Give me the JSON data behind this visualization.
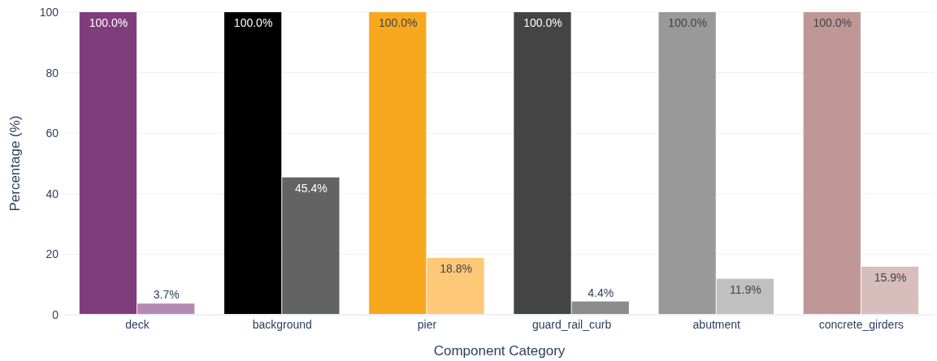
{
  "chart_data": {
    "type": "bar",
    "xlabel": "Component Category",
    "ylabel": "Percentage (%)",
    "categories": [
      "deck",
      "background",
      "pier",
      "guard_rail_curb",
      "abutment",
      "concrete_girders"
    ],
    "series": [
      {
        "colors": [
          "#803d7e",
          "#000000",
          "#f8a81f",
          "#444444",
          "#999999",
          "#bf9797"
        ],
        "values": [
          100,
          100,
          100,
          100,
          100,
          100
        ],
        "value_labels": [
          "100.0%",
          "100.0%",
          "100.0%",
          "100.0%",
          "100.0%",
          "100.0%"
        ]
      },
      {
        "colors": [
          "#b48ab4",
          "#636363",
          "#fdc878",
          "#8c8c8c",
          "#c0c0c0",
          "#d8bdbd"
        ],
        "values": [
          3.7,
          45.4,
          18.8,
          4.4,
          11.9,
          15.9
        ],
        "value_labels": [
          "3.7%",
          "45.4%",
          "18.8%",
          "4.4%",
          "11.9%",
          "15.9%"
        ]
      }
    ],
    "ylim": [
      0,
      100
    ],
    "yticks": [
      0,
      20,
      40,
      60,
      80,
      100
    ],
    "grid": "y"
  }
}
